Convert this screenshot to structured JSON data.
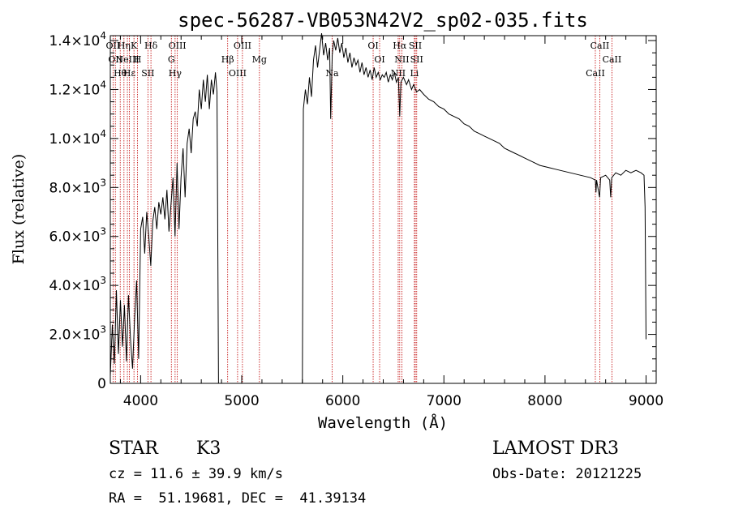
{
  "chart_data": {
    "type": "line",
    "title": "spec-56287-VB053N42V2_sp02-035.fits",
    "xlabel": "Wavelength (Å)",
    "ylabel": "Flux (relative)",
    "xlim": [
      3700,
      9100
    ],
    "ylim": [
      0,
      14200
    ],
    "x_ticks": [
      4000,
      5000,
      6000,
      7000,
      8000,
      9000
    ],
    "x_tick_labels": [
      "4000",
      "5000",
      "6000",
      "7000",
      "8000",
      "9000"
    ],
    "y_ticks": [
      0,
      2000,
      4000,
      6000,
      8000,
      10000,
      12000,
      14000
    ],
    "y_tick_labels": [
      {
        "mantissa": "0",
        "exp": ""
      },
      {
        "mantissa": "2.0×10",
        "exp": "3"
      },
      {
        "mantissa": "4.0×10",
        "exp": "3"
      },
      {
        "mantissa": "6.0×10",
        "exp": "3"
      },
      {
        "mantissa": "8.0×10",
        "exp": "3"
      },
      {
        "mantissa": "1.0×10",
        "exp": "4"
      },
      {
        "mantissa": "1.2×10",
        "exp": "4"
      },
      {
        "mantissa": "1.4×10",
        "exp": "4"
      }
    ],
    "series": [
      {
        "name": "spectrum",
        "points": [
          [
            3700,
            300
          ],
          [
            3720,
            2400
          ],
          [
            3740,
            800
          ],
          [
            3760,
            3800
          ],
          [
            3780,
            1200
          ],
          [
            3800,
            3400
          ],
          [
            3820,
            1500
          ],
          [
            3840,
            3200
          ],
          [
            3860,
            900
          ],
          [
            3880,
            3600
          ],
          [
            3900,
            1800
          ],
          [
            3920,
            600
          ],
          [
            3940,
            2600
          ],
          [
            3960,
            4200
          ],
          [
            3980,
            1000
          ],
          [
            4000,
            6300
          ],
          [
            4020,
            6800
          ],
          [
            4040,
            5300
          ],
          [
            4060,
            7000
          ],
          [
            4080,
            6000
          ],
          [
            4100,
            4800
          ],
          [
            4120,
            6600
          ],
          [
            4140,
            7200
          ],
          [
            4160,
            6300
          ],
          [
            4180,
            7400
          ],
          [
            4200,
            6900
          ],
          [
            4220,
            7600
          ],
          [
            4240,
            6700
          ],
          [
            4260,
            7900
          ],
          [
            4280,
            6200
          ],
          [
            4300,
            7300
          ],
          [
            4320,
            8400
          ],
          [
            4340,
            6000
          ],
          [
            4360,
            9000
          ],
          [
            4380,
            6300
          ],
          [
            4400,
            8400
          ],
          [
            4420,
            9600
          ],
          [
            4440,
            7600
          ],
          [
            4460,
            9800
          ],
          [
            4480,
            10400
          ],
          [
            4500,
            9400
          ],
          [
            4520,
            10800
          ],
          [
            4540,
            11100
          ],
          [
            4560,
            10500
          ],
          [
            4580,
            12000
          ],
          [
            4600,
            11200
          ],
          [
            4620,
            12400
          ],
          [
            4640,
            11500
          ],
          [
            4660,
            12600
          ],
          [
            4680,
            11200
          ],
          [
            4700,
            12400
          ],
          [
            4720,
            11800
          ],
          [
            4740,
            12700
          ],
          [
            4755,
            11900
          ],
          [
            4760,
            8400
          ],
          [
            4770,
            0
          ],
          [
            4775,
            0
          ],
          [
            5600,
            0
          ],
          [
            5610,
            11200
          ],
          [
            5630,
            12000
          ],
          [
            5650,
            11400
          ],
          [
            5670,
            12500
          ],
          [
            5690,
            11700
          ],
          [
            5710,
            13200
          ],
          [
            5730,
            13800
          ],
          [
            5750,
            12900
          ],
          [
            5770,
            13600
          ],
          [
            5790,
            14300
          ],
          [
            5810,
            13400
          ],
          [
            5830,
            13900
          ],
          [
            5850,
            13200
          ],
          [
            5870,
            13700
          ],
          [
            5880,
            10800
          ],
          [
            5895,
            13400
          ],
          [
            5910,
            14000
          ],
          [
            5930,
            13600
          ],
          [
            5950,
            14100
          ],
          [
            5970,
            13500
          ],
          [
            5990,
            13900
          ],
          [
            6010,
            13300
          ],
          [
            6030,
            13700
          ],
          [
            6050,
            13100
          ],
          [
            6070,
            13500
          ],
          [
            6090,
            12900
          ],
          [
            6110,
            13300
          ],
          [
            6130,
            13000
          ],
          [
            6150,
            13200
          ],
          [
            6170,
            12700
          ],
          [
            6190,
            13100
          ],
          [
            6210,
            12600
          ],
          [
            6230,
            12900
          ],
          [
            6250,
            12500
          ],
          [
            6270,
            12800
          ],
          [
            6290,
            12400
          ],
          [
            6310,
            12900
          ],
          [
            6330,
            12500
          ],
          [
            6350,
            12700
          ],
          [
            6370,
            12400
          ],
          [
            6390,
            12600
          ],
          [
            6410,
            12500
          ],
          [
            6430,
            12700
          ],
          [
            6450,
            12300
          ],
          [
            6470,
            12600
          ],
          [
            6490,
            12400
          ],
          [
            6510,
            12700
          ],
          [
            6530,
            12300
          ],
          [
            6550,
            12500
          ],
          [
            6563,
            10900
          ],
          [
            6575,
            12300
          ],
          [
            6600,
            12500
          ],
          [
            6630,
            12200
          ],
          [
            6650,
            12400
          ],
          [
            6680,
            12000
          ],
          [
            6700,
            12200
          ],
          [
            6730,
            11900
          ],
          [
            6760,
            12000
          ],
          [
            6800,
            11800
          ],
          [
            6850,
            11600
          ],
          [
            6900,
            11500
          ],
          [
            6950,
            11300
          ],
          [
            7000,
            11200
          ],
          [
            7050,
            11000
          ],
          [
            7100,
            10900
          ],
          [
            7150,
            10800
          ],
          [
            7200,
            10600
          ],
          [
            7250,
            10500
          ],
          [
            7300,
            10300
          ],
          [
            7350,
            10200
          ],
          [
            7400,
            10100
          ],
          [
            7450,
            10000
          ],
          [
            7500,
            9900
          ],
          [
            7550,
            9800
          ],
          [
            7600,
            9600
          ],
          [
            7650,
            9500
          ],
          [
            7700,
            9400
          ],
          [
            7750,
            9300
          ],
          [
            7800,
            9200
          ],
          [
            7850,
            9100
          ],
          [
            7900,
            9000
          ],
          [
            7950,
            8900
          ],
          [
            8000,
            8850
          ],
          [
            8050,
            8800
          ],
          [
            8100,
            8750
          ],
          [
            8150,
            8700
          ],
          [
            8200,
            8650
          ],
          [
            8250,
            8600
          ],
          [
            8300,
            8550
          ],
          [
            8350,
            8500
          ],
          [
            8400,
            8450
          ],
          [
            8450,
            8400
          ],
          [
            8498,
            8300
          ],
          [
            8505,
            7800
          ],
          [
            8510,
            8300
          ],
          [
            8540,
            7600
          ],
          [
            8550,
            8400
          ],
          [
            8600,
            8500
          ],
          [
            8640,
            8300
          ],
          [
            8650,
            7600
          ],
          [
            8660,
            8400
          ],
          [
            8700,
            8600
          ],
          [
            8750,
            8500
          ],
          [
            8800,
            8700
          ],
          [
            8850,
            8600
          ],
          [
            8900,
            8700
          ],
          [
            8950,
            8600
          ],
          [
            8980,
            8500
          ],
          [
            8990,
            7200
          ],
          [
            9000,
            1800
          ]
        ]
      }
    ],
    "lines": [
      {
        "x": 3727,
        "text": "OII"
      },
      {
        "x": 3750,
        "text": "OII"
      },
      {
        "x": 3798,
        "text": "Hθ"
      },
      {
        "x": 3835,
        "text": "Hη"
      },
      {
        "x": 3869,
        "text": "NeIII"
      },
      {
        "x": 3889,
        "text": "Hε"
      },
      {
        "x": 3934,
        "text": "K"
      },
      {
        "x": 3969,
        "text": "H"
      },
      {
        "x": 4072,
        "text": "SII"
      },
      {
        "x": 4102,
        "text": "Hδ"
      },
      {
        "x": 4304,
        "text": "G"
      },
      {
        "x": 4341,
        "text": "Hγ"
      },
      {
        "x": 4363,
        "text": "OIII"
      },
      {
        "x": 4861,
        "text": "Hβ"
      },
      {
        "x": 4959,
        "text": "OIII"
      },
      {
        "x": 5007,
        "text": "OIII"
      },
      {
        "x": 5175,
        "text": "Mg"
      },
      {
        "x": 5894,
        "text": "Na"
      },
      {
        "x": 6300,
        "text": "OI"
      },
      {
        "x": 6364,
        "text": "OI"
      },
      {
        "x": 6548,
        "text": "NII"
      },
      {
        "x": 6563,
        "text": "Hα"
      },
      {
        "x": 6584,
        "text": "NII"
      },
      {
        "x": 6708,
        "text": "Li"
      },
      {
        "x": 6717,
        "text": "SII"
      },
      {
        "x": 6731,
        "text": "SII"
      },
      {
        "x": 8498,
        "text": "CaII"
      },
      {
        "x": 8542,
        "text": "CaII"
      },
      {
        "x": 8662,
        "text": "CaII"
      }
    ]
  },
  "info": {
    "class": "STAR",
    "subclass": "K3",
    "survey": "LAMOST DR3",
    "cz": "cz = 11.6 ± 39.9 km/s",
    "obsdate": "Obs-Date: 20121225",
    "coords": "RA =  51.19681, DEC =  41.39134"
  },
  "colors": {
    "spectrum": "#000000",
    "line_marker": "#c00000",
    "axis": "#000000"
  }
}
